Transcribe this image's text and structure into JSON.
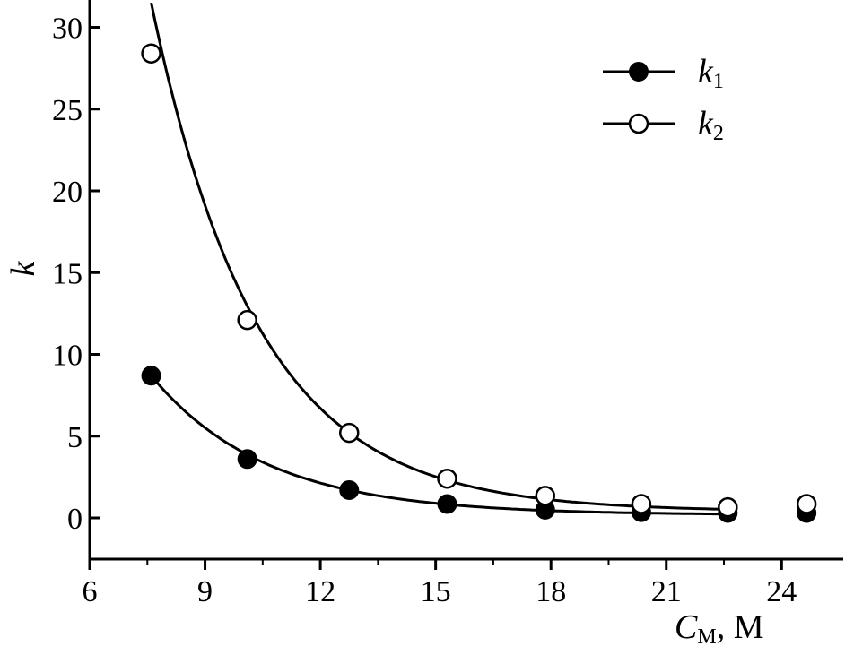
{
  "chart_data": {
    "type": "scatter",
    "xlabel": {
      "symbol": "C",
      "subscript": "M",
      "unit": ", M"
    },
    "ylabel": "k",
    "xlim": [
      6,
      25.5
    ],
    "ylim": [
      -2.5,
      31.5
    ],
    "xticks": [
      6,
      9,
      12,
      15,
      18,
      21,
      24
    ],
    "yticks": [
      0,
      5,
      10,
      15,
      20,
      25,
      30
    ],
    "grid": false,
    "legend": "top-right",
    "series": [
      {
        "name": "k",
        "name_sub": "1",
        "marker": "filled-circle",
        "x": [
          7.6,
          10.1,
          12.75,
          15.3,
          17.85,
          20.35,
          22.6,
          24.65
        ],
        "y": [
          8.7,
          3.6,
          1.7,
          0.85,
          0.5,
          0.35,
          0.3,
          0.3
        ],
        "curve": {
          "x_from": 7.6,
          "x_to": 22.6,
          "y_from": 8.7,
          "y_to": 0.2
        }
      },
      {
        "name": "k",
        "name_sub": "2",
        "marker": "open-circle",
        "x": [
          7.6,
          10.1,
          12.75,
          15.3,
          17.85,
          20.35,
          22.6,
          24.65
        ],
        "y": [
          28.4,
          12.1,
          5.2,
          2.4,
          1.35,
          0.85,
          0.65,
          0.85
        ],
        "curve": {
          "x_from": 7.6,
          "x_to": 22.6,
          "y_from": 31.5,
          "y_to": 0.65
        }
      }
    ]
  }
}
